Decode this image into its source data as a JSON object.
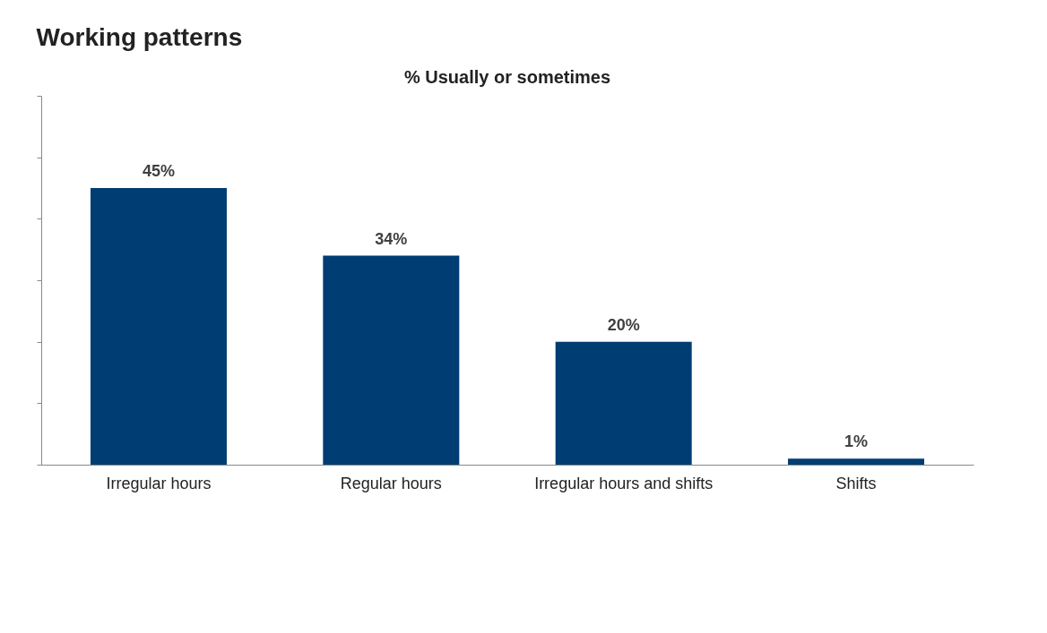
{
  "chart_data": {
    "type": "bar",
    "title": "Working patterns",
    "subtitle": "% Usually or sometimes",
    "categories": [
      "Irregular hours",
      "Regular hours",
      "Irregular hours and shifts",
      "Shifts"
    ],
    "values": [
      45,
      34,
      20,
      1
    ],
    "color": "#003d73",
    "ylim": [
      0,
      60
    ],
    "yticks": [
      {
        "value": 0,
        "label": null
      },
      {
        "value": 10,
        "label": null
      },
      {
        "value": 20,
        "label": null
      },
      {
        "value": 30,
        "label": null
      },
      {
        "value": 40,
        "label": null
      },
      {
        "value": 50,
        "label": null
      },
      {
        "value": 60,
        "label": null
      }
    ],
    "value_labels": [
      "45%",
      "34%",
      "20%",
      "1%"
    ],
    "tick_labels": "x",
    "grid": false
  }
}
